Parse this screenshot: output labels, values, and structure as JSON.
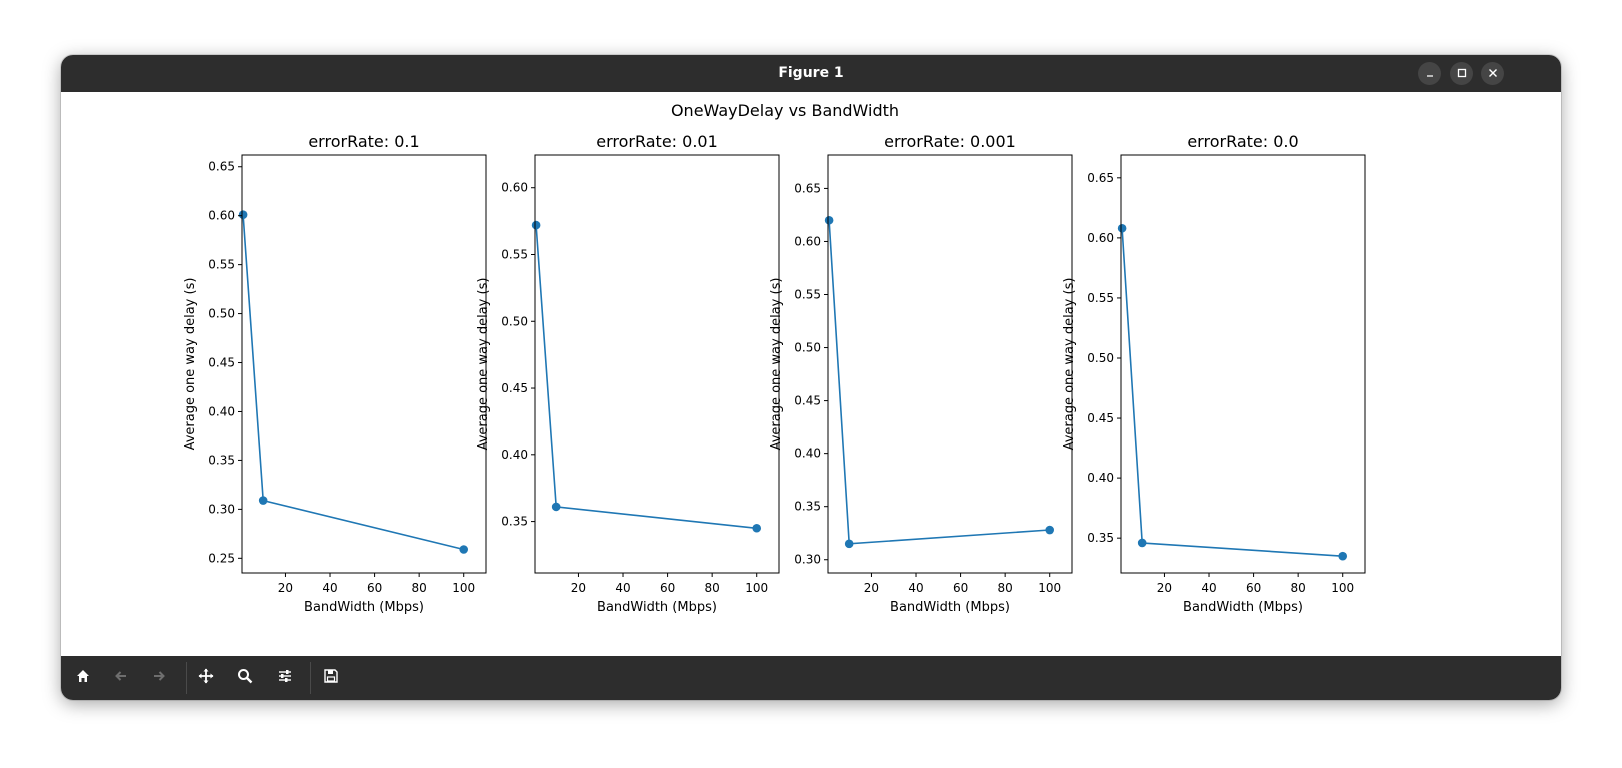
{
  "window": {
    "title": "Figure 1",
    "controls": {
      "minimize_icon": "minimize-icon",
      "maximize_icon": "maximize-icon",
      "close_icon": "close-icon"
    }
  },
  "figure": {
    "suptitle": "OneWayDelay vs BandWidth"
  },
  "toolbar": {
    "icons": [
      "home-icon",
      "back-arrow-icon",
      "forward-arrow-icon",
      "pan-move-icon",
      "zoom-magnifier-icon",
      "configure-subplots-icon",
      "save-floppy-icon"
    ]
  },
  "colors": {
    "series": "#1f77b4",
    "chrome": "#2d2d2d"
  },
  "chart_data": [
    {
      "type": "line",
      "title": "errorRate: 0.1",
      "xlabel": "BandWidth (Mbps)",
      "ylabel": "Average one way delay (s)",
      "x": [
        1,
        10,
        100
      ],
      "y": [
        0.601,
        0.309,
        0.259
      ],
      "xlim": [
        0.5,
        110
      ],
      "ylim": [
        0.235,
        0.662
      ],
      "xticks": [
        20,
        40,
        60,
        80,
        100
      ],
      "yticks": [
        0.25,
        0.3,
        0.35,
        0.4,
        0.45,
        0.5,
        0.55,
        0.6,
        0.65
      ],
      "xtick_labels": [
        "20",
        "40",
        "60",
        "80",
        "100"
      ],
      "ytick_labels": [
        "0.25",
        "0.30",
        "0.35",
        "0.40",
        "0.45",
        "0.50",
        "0.55",
        "0.60",
        "0.65"
      ],
      "grid": false,
      "marker": "circle"
    },
    {
      "type": "line",
      "title": "errorRate: 0.01",
      "xlabel": "BandWidth (Mbps)",
      "ylabel": "Average one way delay (s)",
      "x": [
        1,
        10,
        100
      ],
      "y": [
        0.572,
        0.361,
        0.345
      ],
      "xlim": [
        0.5,
        110
      ],
      "ylim": [
        0.3115,
        0.6245
      ],
      "xticks": [
        20,
        40,
        60,
        80,
        100
      ],
      "yticks": [
        0.35,
        0.4,
        0.45,
        0.5,
        0.55,
        0.6
      ],
      "xtick_labels": [
        "20",
        "40",
        "60",
        "80",
        "100"
      ],
      "ytick_labels": [
        "0.35",
        "0.40",
        "0.45",
        "0.50",
        "0.55",
        "0.60"
      ],
      "grid": false,
      "marker": "circle"
    },
    {
      "type": "line",
      "title": "errorRate: 0.001",
      "xlabel": "BandWidth (Mbps)",
      "ylabel": "Average one way delay (s)",
      "x": [
        1,
        10,
        100
      ],
      "y": [
        0.62,
        0.315,
        0.328
      ],
      "xlim": [
        0.5,
        110
      ],
      "ylim": [
        0.2875,
        0.6815
      ],
      "xticks": [
        20,
        40,
        60,
        80,
        100
      ],
      "yticks": [
        0.3,
        0.35,
        0.4,
        0.45,
        0.5,
        0.55,
        0.6,
        0.65
      ],
      "xtick_labels": [
        "20",
        "40",
        "60",
        "80",
        "100"
      ],
      "ytick_labels": [
        "0.30",
        "0.35",
        "0.40",
        "0.45",
        "0.50",
        "0.55",
        "0.60",
        "0.65"
      ],
      "grid": false,
      "marker": "circle"
    },
    {
      "type": "line",
      "title": "errorRate: 0.0",
      "xlabel": "BandWidth (Mbps)",
      "ylabel": "Average one way delay (s)",
      "x": [
        1,
        10,
        100
      ],
      "y": [
        0.608,
        0.346,
        0.335
      ],
      "xlim": [
        0.5,
        110
      ],
      "ylim": [
        0.321,
        0.669
      ],
      "xticks": [
        20,
        40,
        60,
        80,
        100
      ],
      "yticks": [
        0.35,
        0.4,
        0.45,
        0.5,
        0.55,
        0.6,
        0.65
      ],
      "xtick_labels": [
        "20",
        "40",
        "60",
        "80",
        "100"
      ],
      "ytick_labels": [
        "0.35",
        "0.40",
        "0.45",
        "0.50",
        "0.55",
        "0.60",
        "0.65"
      ],
      "grid": false,
      "marker": "circle"
    }
  ]
}
